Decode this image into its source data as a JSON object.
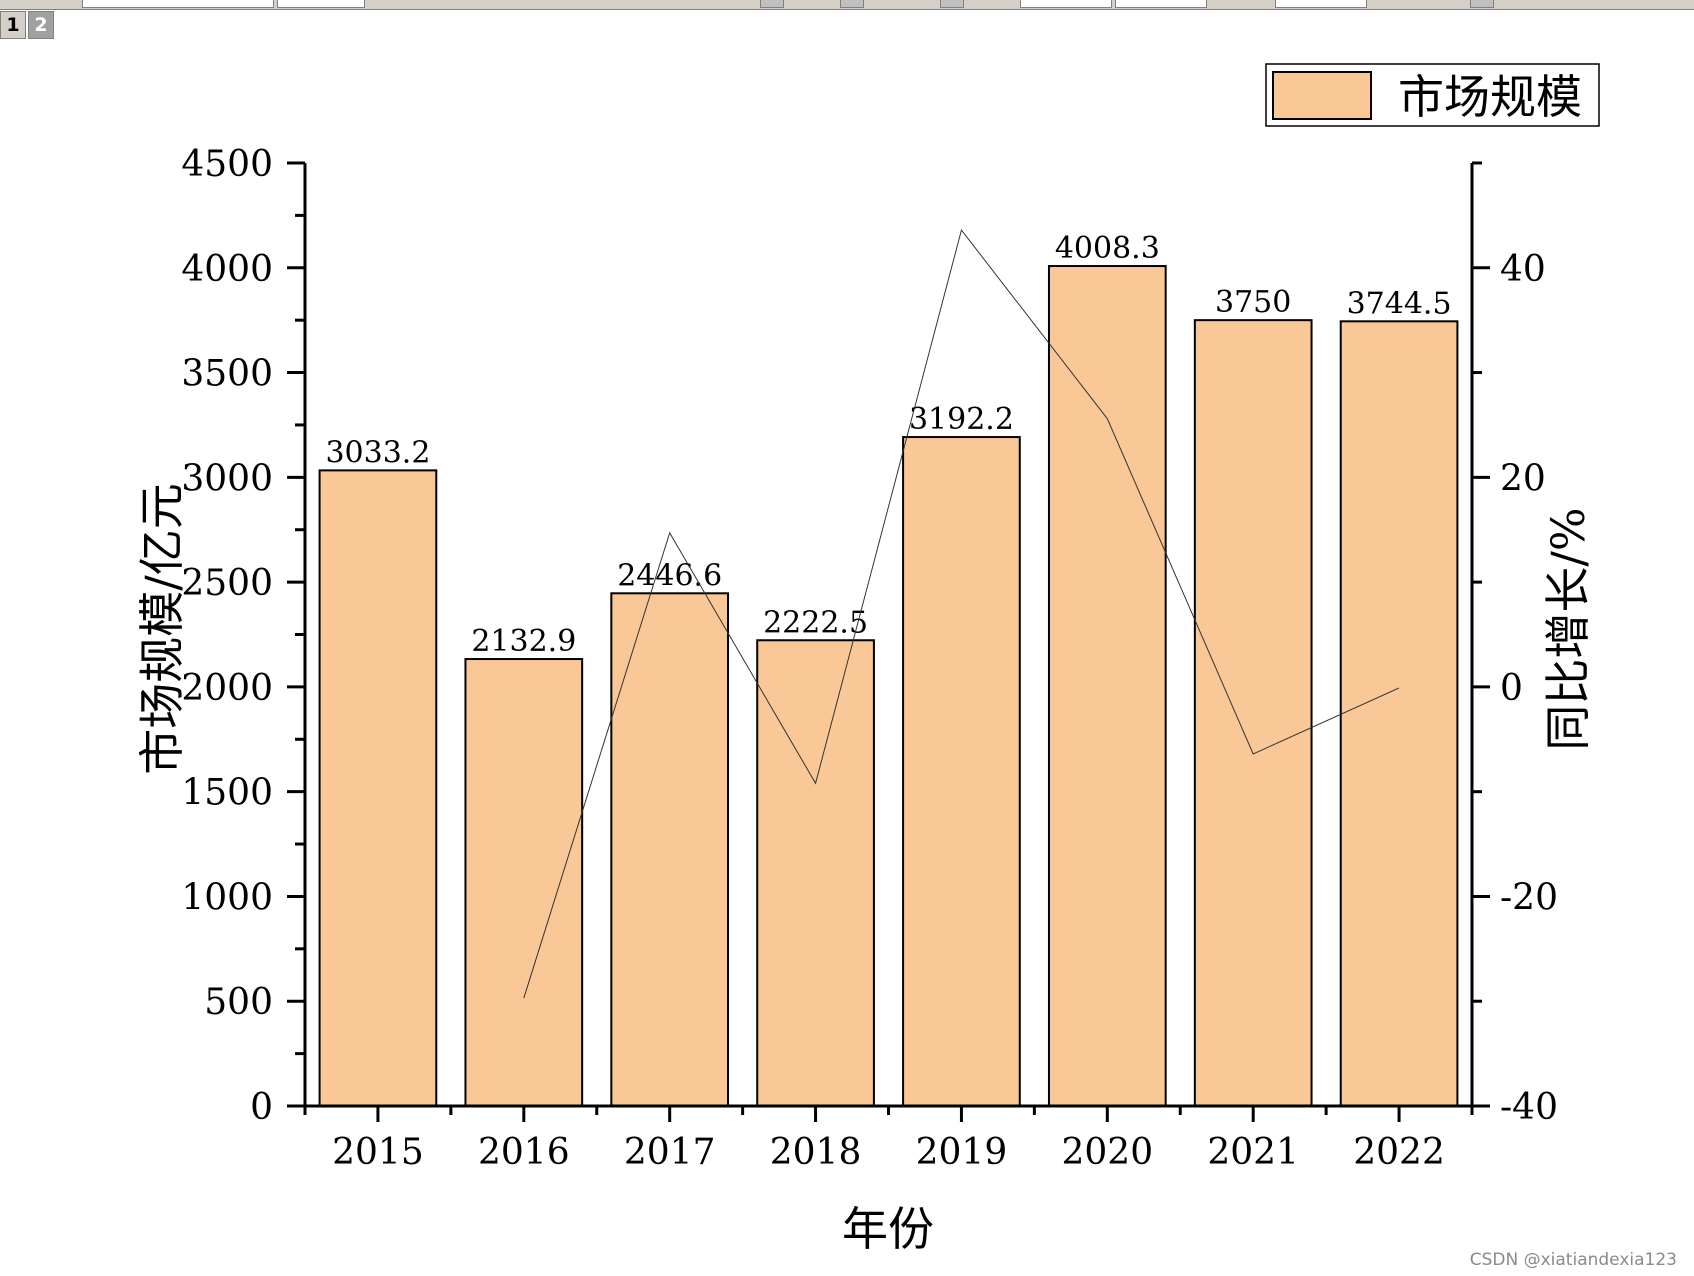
{
  "layer_tabs": [
    "1",
    "2"
  ],
  "watermark": "CSDN @xiatiandexia123",
  "chart_data": {
    "type": "bar",
    "categories": [
      "2015",
      "2016",
      "2017",
      "2018",
      "2019",
      "2020",
      "2021",
      "2022"
    ],
    "series": [
      {
        "name": "市场规模",
        "type": "bar",
        "axis": "left",
        "values": [
          3033.2,
          2132.9,
          2446.6,
          2222.5,
          3192.2,
          4008.3,
          3750,
          3744.5
        ],
        "value_labels": [
          "3033.2",
          "2132.9",
          "2446.6",
          "2222.5",
          "3192.2",
          "4008.3",
          "3750",
          "3744.5"
        ],
        "color": "#f9c896"
      },
      {
        "type": "line",
        "axis": "right",
        "values": [
          null,
          -29.7,
          14.7,
          -9.2,
          43.6,
          25.6,
          -6.4,
          -0.1
        ],
        "color": "#333333"
      }
    ],
    "xlabel": "年份",
    "ylabel": "市场规模/亿元",
    "y2label": "同比增长/%",
    "ylim": [
      0,
      4500
    ],
    "y2lim": [
      -40,
      50
    ],
    "yticks": [
      0,
      500,
      1000,
      1500,
      2000,
      2500,
      3000,
      3500,
      4000,
      4500
    ],
    "y2ticks": [
      -40,
      -20,
      0,
      20,
      40
    ],
    "legend": {
      "entries": [
        "市场规模"
      ],
      "position": "top-right"
    },
    "grid": false
  }
}
